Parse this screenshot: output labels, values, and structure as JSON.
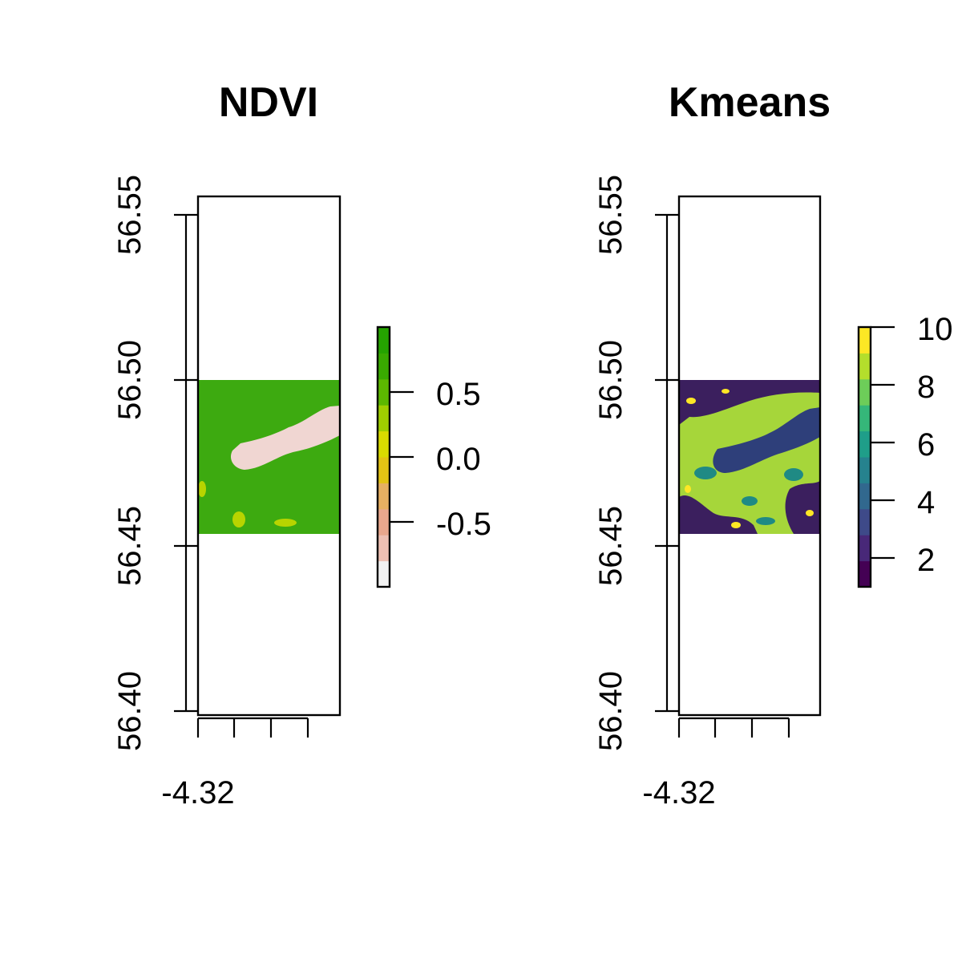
{
  "panels": [
    {
      "title": "NDVI",
      "y_ticks": [
        "56.55",
        "56.50",
        "56.45",
        "56.40"
      ],
      "x_ticks": [
        "-4.32"
      ],
      "legend_ticks": [
        "0.5",
        "0.0",
        "-0.5"
      ],
      "legend_colors": [
        "#f2f2f2",
        "#eec0b3",
        "#e9a78d",
        "#e7b062",
        "#e3c314",
        "#d9db00",
        "#a0cf00",
        "#5cb800",
        "#39aa00",
        "#25a300"
      ],
      "raster": {
        "base_color": "#3daa10",
        "lake_color": "#f0d6d2",
        "patch_color": "#b8d400"
      }
    },
    {
      "title": "Kmeans",
      "y_ticks": [
        "56.55",
        "56.50",
        "56.45",
        "56.40"
      ],
      "x_ticks": [
        "-4.32"
      ],
      "legend_ticks": [
        "10",
        "8",
        "6",
        "4",
        "2"
      ],
      "legend_colors": [
        "#440154",
        "#482878",
        "#3e4a89",
        "#31688e",
        "#26828e",
        "#1f9e89",
        "#35b779",
        "#6dcd59",
        "#b4de2c",
        "#fde725"
      ],
      "raster": {
        "base_color": "#a6d63a",
        "lake_color": "#2e3f7a",
        "dark_color": "#3b1f5e",
        "patch_color": "#1f8a84",
        "speck_color": "#fde725"
      }
    }
  ]
}
